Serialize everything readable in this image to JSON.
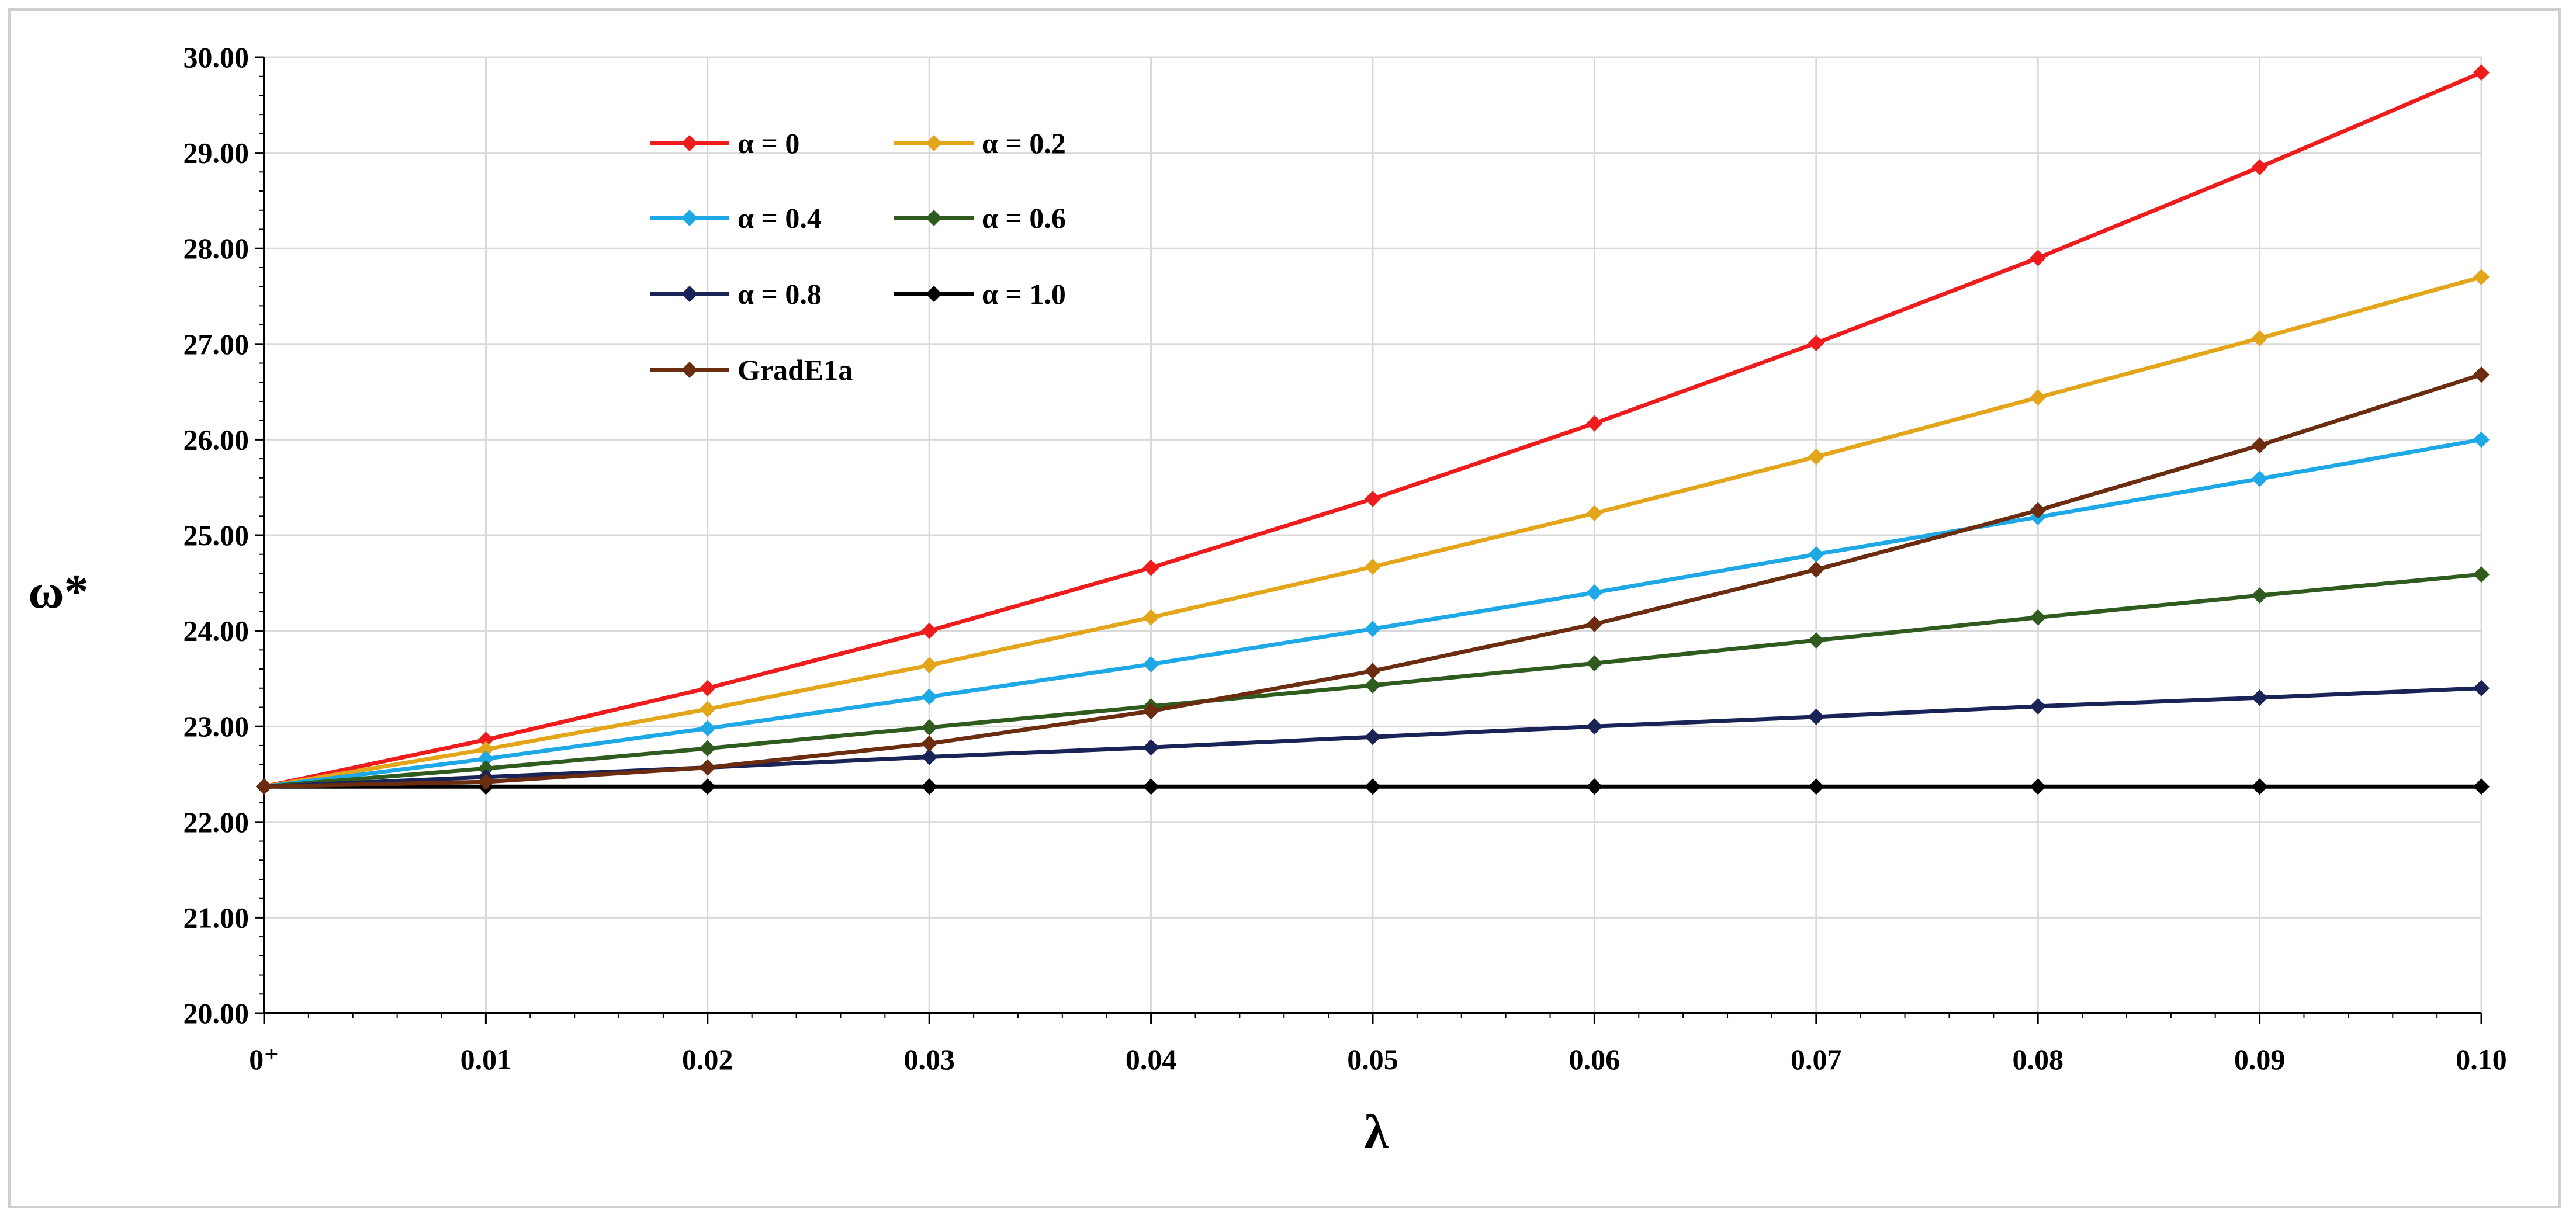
{
  "chart_data": {
    "type": "line",
    "title": "",
    "xlabel": "λ",
    "ylabel": "ω*",
    "x_tick_labels": [
      "0⁺",
      "0.01",
      "0.02",
      "0.03",
      "0.04",
      "0.05",
      "0.06",
      "0.07",
      "0.08",
      "0.09",
      "0.10"
    ],
    "x": [
      0,
      0.01,
      0.02,
      0.03,
      0.04,
      0.05,
      0.06,
      0.07,
      0.08,
      0.09,
      0.1
    ],
    "xlim": [
      0,
      0.1
    ],
    "ylim": [
      20.0,
      30.0
    ],
    "y_ticks": [
      20.0,
      21.0,
      22.0,
      23.0,
      24.0,
      25.0,
      26.0,
      27.0,
      28.0,
      29.0,
      30.0
    ],
    "y_tick_labels": [
      "20.00",
      "21.00",
      "22.00",
      "23.00",
      "24.00",
      "25.00",
      "26.00",
      "27.00",
      "28.00",
      "29.00",
      "30.00"
    ],
    "grid": true,
    "legend_position": "top-left",
    "series": [
      {
        "name": "α = 0",
        "color": "#ee1c1c",
        "values": [
          22.37,
          22.86,
          23.4,
          24.0,
          24.66,
          25.38,
          26.17,
          27.01,
          27.9,
          28.85,
          29.84
        ]
      },
      {
        "name": "α = 0.2",
        "color": "#e3a51a",
        "values": [
          22.37,
          22.76,
          23.18,
          23.64,
          24.14,
          24.67,
          25.23,
          25.82,
          26.44,
          27.06,
          27.7
        ]
      },
      {
        "name": "α = 0.4",
        "color": "#1ea8e6",
        "values": [
          22.37,
          22.66,
          22.98,
          23.31,
          23.65,
          24.02,
          24.4,
          24.8,
          25.19,
          25.59,
          26.0
        ]
      },
      {
        "name": "α = 0.6",
        "color": "#2f5b1e",
        "values": [
          22.37,
          22.56,
          22.77,
          22.99,
          23.21,
          23.43,
          23.66,
          23.9,
          24.14,
          24.37,
          24.59
        ]
      },
      {
        "name": "α = 0.8",
        "color": "#1a2356",
        "values": [
          22.37,
          22.47,
          22.57,
          22.68,
          22.78,
          22.89,
          23.0,
          23.1,
          23.21,
          23.3,
          23.4
        ]
      },
      {
        "name": "α = 1.0",
        "color": "#000000",
        "values": [
          22.37,
          22.37,
          22.37,
          22.37,
          22.37,
          22.37,
          22.37,
          22.37,
          22.37,
          22.37,
          22.37
        ]
      },
      {
        "name": "GradE1a",
        "color": "#6b2c10",
        "values": [
          22.37,
          22.42,
          22.57,
          22.82,
          23.16,
          23.58,
          24.07,
          24.64,
          25.26,
          25.94,
          26.68
        ]
      }
    ]
  }
}
